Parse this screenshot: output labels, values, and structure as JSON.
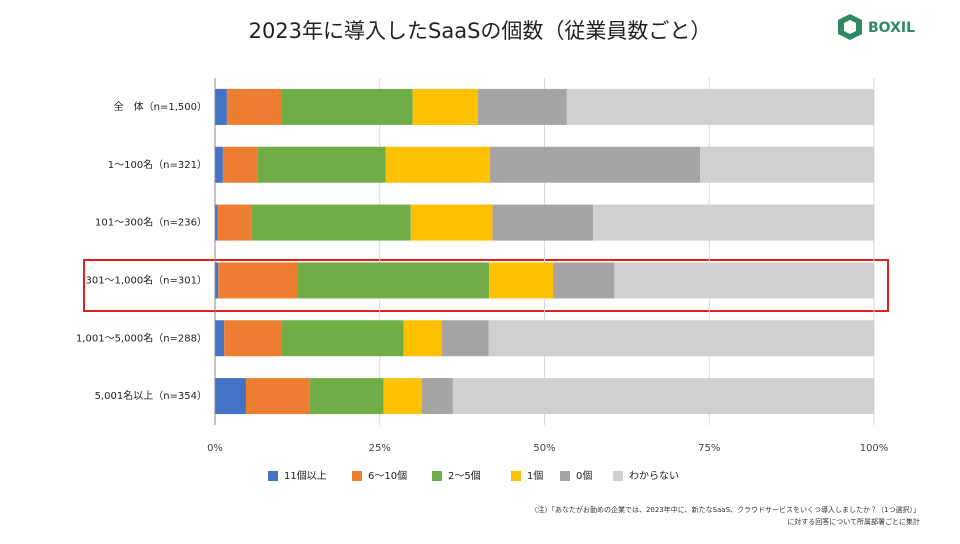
{
  "logo": "BOXIL",
  "chart_data": {
    "type": "stacked-bar-horizontal",
    "title": "2023年に導入したSaaSの個数（従業員数ごと）",
    "categories": [
      "全　体（n=1,500）",
      "1～100名（n=321）",
      "101～300名（n=236）",
      "301～1,000名（n=301）",
      "1,001～5,000名（n=288）",
      "5,001名以上（n=354）"
    ],
    "series": [
      {
        "name": "11個以上",
        "color": "#4472c4",
        "values": [
          1.8,
          1.2,
          0.4,
          0.5,
          1.4,
          4.7
        ]
      },
      {
        "name": "6～10個",
        "color": "#ed7d31",
        "values": [
          8.3,
          5.3,
          5.1,
          12.1,
          8.7,
          9.7
        ]
      },
      {
        "name": "2～5個",
        "color": "#70ad47",
        "values": [
          19.9,
          19.4,
          24.2,
          29.0,
          18.5,
          11.2
        ]
      },
      {
        "name": "1個",
        "color": "#ffc000",
        "values": [
          9.9,
          15.8,
          12.4,
          9.7,
          5.8,
          5.8
        ]
      },
      {
        "name": "0個",
        "color": "#a5a5a5",
        "values": [
          13.5,
          31.9,
          15.3,
          9.3,
          7.1,
          4.7
        ]
      },
      {
        "name": "わからない",
        "color": "#d0d0d0",
        "values": [
          46.6,
          26.4,
          42.6,
          39.4,
          58.5,
          63.9
        ]
      }
    ],
    "xlim": [
      0,
      100
    ],
    "xticks": [
      {
        "value": 0,
        "label": "0%"
      },
      {
        "value": 25,
        "label": "25%"
      },
      {
        "value": 50,
        "label": "50%"
      },
      {
        "value": 75,
        "label": "75%"
      },
      {
        "value": 100,
        "label": "100%"
      }
    ],
    "grid": true,
    "annotations": [
      "（注）「あなたがお勤めの企業では、2023年中に、新たなSaaS、クラウドサービスをいくつ導入しましたか？（1つ選択）」",
      "に対する回答について所属部署ごとに集計"
    ]
  }
}
